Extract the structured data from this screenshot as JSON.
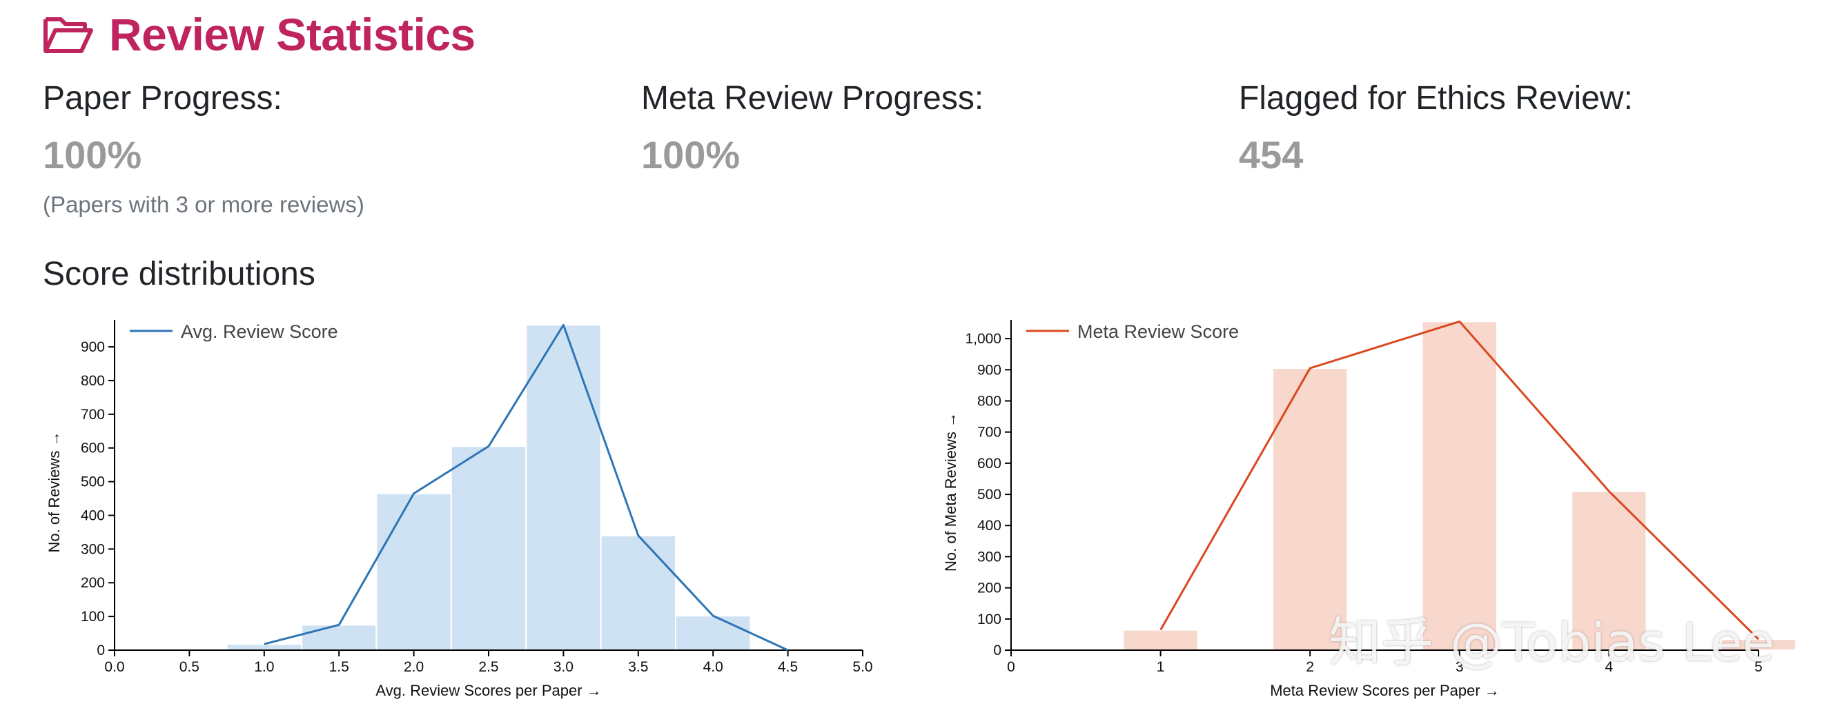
{
  "header": {
    "title": "Review Statistics",
    "icon": "folder-open-icon"
  },
  "stats": [
    {
      "label": "Paper Progress:",
      "value": "100%",
      "note": "(Papers with 3 or more reviews)"
    },
    {
      "label": "Meta Review Progress:",
      "value": "100%"
    },
    {
      "label": "Flagged for Ethics Review:",
      "value": "454"
    }
  ],
  "section_title": "Score distributions",
  "watermark": "知乎 @Tobias Lee",
  "chart_data": [
    {
      "type": "bar",
      "xlabel": "Avg. Review Scores per Paper →",
      "ylabel": "No. of Reviews →",
      "xlim": [
        0,
        5
      ],
      "ylim": [
        0,
        980
      ],
      "x_ticks": [
        "0.0",
        "0.5",
        "1.0",
        "1.5",
        "2.0",
        "2.5",
        "3.0",
        "3.5",
        "4.0",
        "4.5",
        "5.0"
      ],
      "y_ticks": [
        "0",
        "100",
        "200",
        "300",
        "400",
        "500",
        "600",
        "700",
        "800",
        "900"
      ],
      "bar_width": 0.5,
      "bars": [
        {
          "x": 1.0,
          "value": 18
        },
        {
          "x": 1.5,
          "value": 75
        },
        {
          "x": 2.0,
          "value": 465
        },
        {
          "x": 2.5,
          "value": 605
        },
        {
          "x": 3.0,
          "value": 965
        },
        {
          "x": 3.5,
          "value": 340
        },
        {
          "x": 4.0,
          "value": 102
        }
      ],
      "line": {
        "name": "Avg. Review Score",
        "points": [
          [
            1.0,
            18
          ],
          [
            1.5,
            75
          ],
          [
            2.0,
            465
          ],
          [
            2.5,
            605
          ],
          [
            3.0,
            965
          ],
          [
            3.5,
            340
          ],
          [
            4.0,
            102
          ],
          [
            4.5,
            0
          ]
        ]
      },
      "bar_color": "#cfe2f3",
      "line_color": "#2e75b6",
      "legend": "top-left"
    },
    {
      "type": "bar",
      "xlabel": "Meta Review Scores per Paper →",
      "ylabel": "No. of Meta Reviews →",
      "xlim": [
        0,
        5
      ],
      "ylim": [
        0,
        1060
      ],
      "x_ticks": [
        "0",
        "1",
        "2",
        "3",
        "4",
        "5"
      ],
      "y_ticks": [
        "0",
        "100",
        "200",
        "300",
        "400",
        "500",
        "600",
        "700",
        "800",
        "900",
        "1,000"
      ],
      "bar_width": 0.5,
      "bars": [
        {
          "x": 1,
          "value": 65
        },
        {
          "x": 2,
          "value": 905
        },
        {
          "x": 3,
          "value": 1055
        },
        {
          "x": 4,
          "value": 510
        },
        {
          "x": 5,
          "value": 35
        }
      ],
      "line": {
        "name": "Meta Review Score",
        "points": [
          [
            1,
            65
          ],
          [
            2,
            905
          ],
          [
            3,
            1055
          ],
          [
            4,
            510
          ],
          [
            5,
            35
          ]
        ]
      },
      "bar_color": "#f8d7cc",
      "line_color": "#d9481f",
      "legend": "top-left"
    }
  ]
}
